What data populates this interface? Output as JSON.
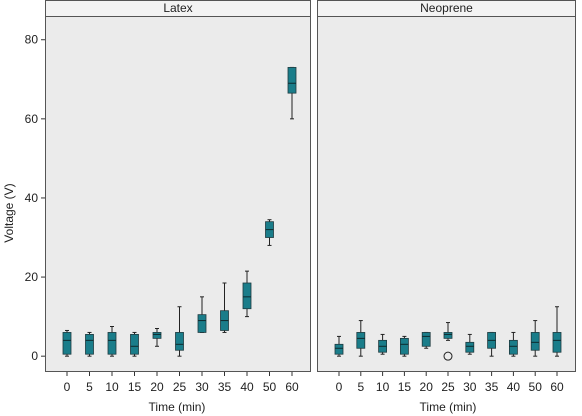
{
  "chart_data": {
    "type": "boxplot",
    "xlabel": "Time (min)",
    "ylabel": "Voltage (V)",
    "ylim": [
      -4,
      86
    ],
    "yticks": [
      0,
      20,
      40,
      60,
      80
    ],
    "categories": [
      "0",
      "5",
      "10",
      "15",
      "20",
      "25",
      "30",
      "35",
      "40",
      "50",
      "60"
    ],
    "box_color": "#1a7d8a",
    "panel_background": "#ebebeb",
    "strip_background": "#f3f3f3",
    "grid": false,
    "panels": [
      {
        "title": "Latex",
        "boxes": [
          {
            "min": 0,
            "q1": 0.5,
            "median": 4,
            "q3": 6,
            "max": 6.5
          },
          {
            "min": 0,
            "q1": 0.5,
            "median": 4,
            "q3": 5.5,
            "max": 6
          },
          {
            "min": 0,
            "q1": 0.5,
            "median": 4,
            "q3": 6,
            "max": 7.5
          },
          {
            "min": 0,
            "q1": 0.5,
            "median": 2.5,
            "q3": 5.5,
            "max": 6
          },
          {
            "min": 2.5,
            "q1": 4.5,
            "median": 5.5,
            "q3": 6,
            "max": 7
          },
          {
            "min": 0,
            "q1": 1.5,
            "median": 3,
            "q3": 6,
            "max": 12.5
          },
          {
            "min": 6,
            "q1": 6,
            "median": 9,
            "q3": 10.5,
            "max": 15
          },
          {
            "min": 6,
            "q1": 6.5,
            "median": 9,
            "q3": 11.5,
            "max": 18.5
          },
          {
            "min": 10,
            "q1": 12,
            "median": 15,
            "q3": 18.5,
            "max": 21.5
          },
          {
            "min": 28,
            "q1": 30,
            "median": 32,
            "q3": 34,
            "max": 34.5
          },
          {
            "min": 60,
            "q1": 66.5,
            "median": 69,
            "q3": 73,
            "max": 73
          }
        ]
      },
      {
        "title": "Neoprene",
        "boxes": [
          {
            "min": 0,
            "q1": 0.5,
            "median": 2,
            "q3": 3,
            "max": 5
          },
          {
            "min": 0,
            "q1": 2,
            "median": 4.5,
            "q3": 6,
            "max": 9
          },
          {
            "min": 0.5,
            "q1": 1,
            "median": 2.5,
            "q3": 4,
            "max": 5.5
          },
          {
            "min": 0,
            "q1": 0.5,
            "median": 3,
            "q3": 4.5,
            "max": 5
          },
          {
            "min": 2,
            "q1": 2.5,
            "median": 5,
            "q3": 6,
            "max": 6
          },
          {
            "min": 4,
            "q1": 4.5,
            "median": 5.5,
            "q3": 6,
            "max": 8.5,
            "outliers": [
              0
            ]
          },
          {
            "min": 0.5,
            "q1": 1,
            "median": 2.5,
            "q3": 3.5,
            "max": 5.5
          },
          {
            "min": 0,
            "q1": 2,
            "median": 4,
            "q3": 6,
            "max": 6
          },
          {
            "min": 0,
            "q1": 0.5,
            "median": 2.5,
            "q3": 4,
            "max": 6
          },
          {
            "min": 0,
            "q1": 1.5,
            "median": 3.5,
            "q3": 6,
            "max": 9
          },
          {
            "min": 0,
            "q1": 1,
            "median": 4,
            "q3": 6,
            "max": 12.5
          }
        ]
      }
    ]
  }
}
